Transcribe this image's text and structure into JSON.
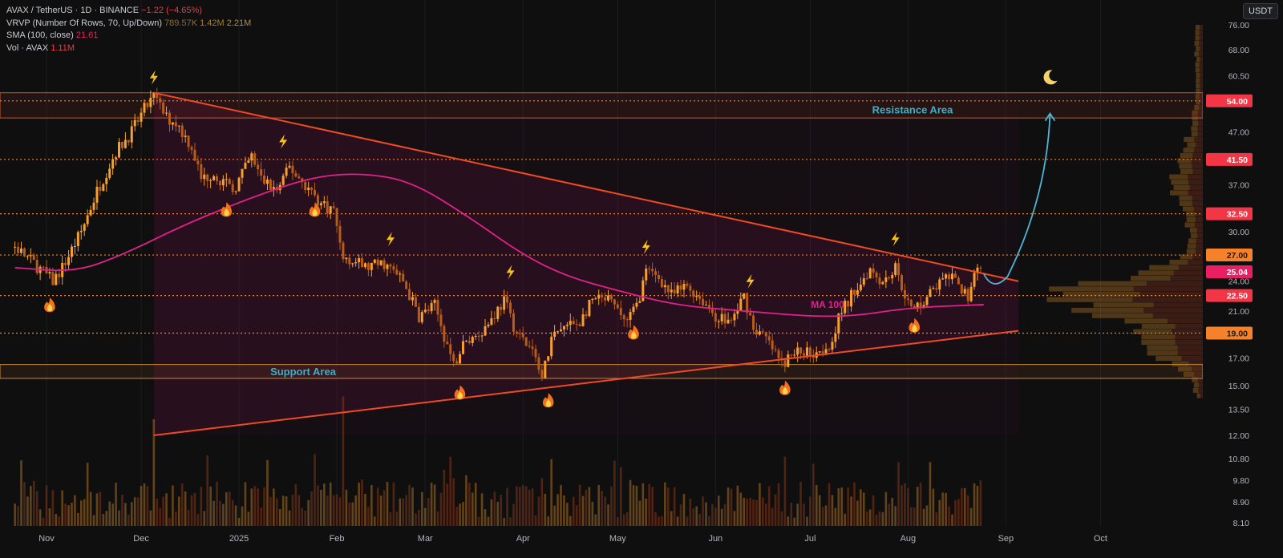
{
  "legend": {
    "symbol": "AVAX / TetherUS · 1D · BINANCE",
    "change": "−1.22 (−4.65%)",
    "vrvp_label": "VRVP (Number Of Rows, 70, Up/Down)",
    "vrvp_v1": "789.57K",
    "vrvp_v2": "1.42M",
    "vrvp_v3": "2.21M",
    "sma_label": "SMA (100, close)",
    "sma_value": "21.61",
    "vol_label": "Vol · AVAX",
    "vol_value": "1.11M"
  },
  "currency_button": "USDT",
  "colors": {
    "background": "#0f0f10",
    "up": "#f7a030",
    "down": "#b85c18",
    "level_line": "#f5822a",
    "trendline": "#ef4a24",
    "sma": "#e0218a",
    "arrow": "#4fb6d6",
    "zone_label": "#3cb0c8",
    "badge_orange": "#f5822a",
    "badge_red": "#f23645",
    "badge_pink": "#e91e63"
  },
  "annotations": {
    "resistance": "Resistance Area",
    "support": "Support Area",
    "ma": "MA 100"
  },
  "chart_data": {
    "type": "candlestick",
    "title": "AVAX / TetherUS · 1D · BINANCE",
    "log_scale": true,
    "ylim": [
      8.1,
      76.0
    ],
    "x_ticks": [
      "Nov",
      "Dec",
      "2025",
      "Feb",
      "Mar",
      "Apr",
      "May",
      "Jun",
      "Jul",
      "Aug",
      "Sep",
      "Oct"
    ],
    "y_ticks": [
      "76.00",
      "68.00",
      "60.50",
      "54.00",
      "47.00",
      "41.50",
      "37.00",
      "32.50",
      "30.00",
      "27.00",
      "25.04",
      "24.00",
      "22.50",
      "21.00",
      "19.00",
      "17.00",
      "15.00",
      "13.50",
      "12.00",
      "10.80",
      "9.80",
      "8.90",
      "8.10"
    ],
    "horizontal_levels": [
      54.0,
      41.5,
      32.5,
      27.0,
      22.5,
      19.0
    ],
    "level_badges": [
      {
        "label": "54.00",
        "value": 54.0,
        "color": "#f23645"
      },
      {
        "label": "41.50",
        "value": 41.5,
        "color": "#f23645"
      },
      {
        "label": "32.50",
        "value": 32.5,
        "color": "#f23645"
      },
      {
        "label": "27.00",
        "value": 27.0,
        "color": "#f5822a"
      },
      {
        "label": "25.04",
        "value": 25.04,
        "color": "#e91e63"
      },
      {
        "label": "22.50",
        "value": 22.5,
        "color": "#f23645"
      },
      {
        "label": "19.00",
        "value": 19.0,
        "color": "#f5822a"
      }
    ],
    "resistance_zone": [
      50.0,
      56.0
    ],
    "support_zone": [
      15.5,
      16.5
    ],
    "last_price": 25.04,
    "sma_last": 21.61,
    "price_path": [
      [
        "2024-10-22",
        28.0
      ],
      [
        "2024-10-28",
        26.0
      ],
      [
        "2024-11-03",
        24.0
      ],
      [
        "2024-11-06",
        25.5
      ],
      [
        "2024-11-12",
        30.0
      ],
      [
        "2024-11-17",
        36.0
      ],
      [
        "2024-11-23",
        43.0
      ],
      [
        "2024-11-28",
        47.0
      ],
      [
        "2024-12-02",
        52.0
      ],
      [
        "2024-12-05",
        55.0
      ],
      [
        "2024-12-09",
        50.0
      ],
      [
        "2024-12-12",
        49.0
      ],
      [
        "2024-12-17",
        44.0
      ],
      [
        "2024-12-20",
        38.0
      ],
      [
        "2024-12-24",
        39.0
      ],
      [
        "2024-12-30",
        36.0
      ],
      [
        "2025-01-05",
        42.0
      ],
      [
        "2025-01-08",
        38.0
      ],
      [
        "2025-01-13",
        36.0
      ],
      [
        "2025-01-17",
        40.0
      ],
      [
        "2025-01-22",
        37.0
      ],
      [
        "2025-01-27",
        34.0
      ],
      [
        "2025-01-31",
        33.0
      ],
      [
        "2025-02-03",
        27.0
      ],
      [
        "2025-02-10",
        25.5
      ],
      [
        "2025-02-16",
        26.0
      ],
      [
        "2025-02-22",
        24.0
      ],
      [
        "2025-02-27",
        20.5
      ],
      [
        "2025-03-04",
        21.5
      ],
      [
        "2025-03-10",
        16.5
      ],
      [
        "2025-03-13",
        18.0
      ],
      [
        "2025-03-20",
        19.5
      ],
      [
        "2025-03-26",
        22.0
      ],
      [
        "2025-03-30",
        19.0
      ],
      [
        "2025-04-04",
        17.5
      ],
      [
        "2025-04-07",
        15.5
      ],
      [
        "2025-04-10",
        18.5
      ],
      [
        "2025-04-14",
        19.5
      ],
      [
        "2025-04-19",
        20.0
      ],
      [
        "2025-04-23",
        22.0
      ],
      [
        "2025-04-28",
        22.0
      ],
      [
        "2025-05-04",
        20.0
      ],
      [
        "2025-05-07",
        21.5
      ],
      [
        "2025-05-10",
        25.0
      ],
      [
        "2025-05-14",
        24.5
      ],
      [
        "2025-05-18",
        22.5
      ],
      [
        "2025-05-23",
        23.5
      ],
      [
        "2025-05-28",
        22.0
      ],
      [
        "2025-06-01",
        20.5
      ],
      [
        "2025-06-06",
        20.0
      ],
      [
        "2025-06-10",
        22.5
      ],
      [
        "2025-06-13",
        19.5
      ],
      [
        "2025-06-17",
        18.5
      ],
      [
        "2025-06-22",
        16.5
      ],
      [
        "2025-06-27",
        17.5
      ],
      [
        "2025-07-02",
        17.5
      ],
      [
        "2025-07-07",
        18.0
      ],
      [
        "2025-07-11",
        21.0
      ],
      [
        "2025-07-15",
        23.0
      ],
      [
        "2025-07-20",
        25.5
      ],
      [
        "2025-07-24",
        24.0
      ],
      [
        "2025-07-28",
        25.5
      ],
      [
        "2025-08-02",
        21.0
      ],
      [
        "2025-08-06",
        22.0
      ],
      [
        "2025-08-10",
        23.5
      ],
      [
        "2025-08-14",
        24.5
      ],
      [
        "2025-08-18",
        23.0
      ],
      [
        "2025-08-20",
        22.5
      ],
      [
        "2025-08-23",
        26.0
      ],
      [
        "2025-08-24",
        25.04
      ]
    ],
    "sma_path": [
      [
        "2024-10-22",
        25.5
      ],
      [
        "2024-11-10",
        25.0
      ],
      [
        "2024-11-25",
        27.0
      ],
      [
        "2024-12-15",
        31.0
      ],
      [
        "2025-01-05",
        35.0
      ],
      [
        "2025-01-25",
        38.5
      ],
      [
        "2025-02-10",
        39.0
      ],
      [
        "2025-02-25",
        37.5
      ],
      [
        "2025-03-15",
        32.0
      ],
      [
        "2025-04-01",
        27.0
      ],
      [
        "2025-04-15",
        24.5
      ],
      [
        "2025-05-01",
        23.0
      ],
      [
        "2025-05-20",
        21.5
      ],
      [
        "2025-06-10",
        21.0
      ],
      [
        "2025-06-30",
        20.5
      ],
      [
        "2025-07-15",
        20.5
      ],
      [
        "2025-08-01",
        21.3
      ],
      [
        "2025-08-25",
        21.6
      ]
    ],
    "trendlines": [
      {
        "name": "upper",
        "from": [
          "2024-12-05",
          56.0
        ],
        "to": [
          "2025-09-05",
          24.0
        ]
      },
      {
        "name": "lower",
        "from": [
          "2024-12-05",
          12.0
        ],
        "to": [
          "2025-09-05",
          19.2
        ]
      }
    ],
    "projection": {
      "from": [
        "2025-08-25",
        24.8
      ],
      "low": [
        "2025-08-28",
        24.0
      ],
      "to": [
        "2025-09-15",
        51.0
      ]
    },
    "lightning_markers": [
      [
        "2024-12-05",
        60.0
      ],
      [
        "2025-01-15",
        45.0
      ],
      [
        "2025-02-18",
        29.0
      ],
      [
        "2025-03-28",
        25.0
      ],
      [
        "2025-05-10",
        28.0
      ],
      [
        "2025-06-12",
        24.0
      ],
      [
        "2025-07-28",
        29.0
      ]
    ],
    "fire_markers": [
      [
        "2024-11-02",
        21.5
      ],
      [
        "2024-12-28",
        33.0
      ],
      [
        "2025-01-25",
        33.0
      ],
      [
        "2025-03-12",
        14.5
      ],
      [
        "2025-04-09",
        14.0
      ],
      [
        "2025-05-06",
        19.0
      ],
      [
        "2025-06-23",
        14.8
      ],
      [
        "2025-08-03",
        19.6
      ]
    ],
    "moon_marker": [
      "2025-09-15",
      60.0
    ],
    "volume_peaks": [
      [
        "2024-12-05",
        12.9
      ],
      [
        "2025-02-03",
        14.3
      ],
      [
        "2025-03-10",
        9.9
      ],
      [
        "2025-04-07",
        9.9
      ],
      [
        "2025-08-24",
        9.8
      ]
    ]
  }
}
